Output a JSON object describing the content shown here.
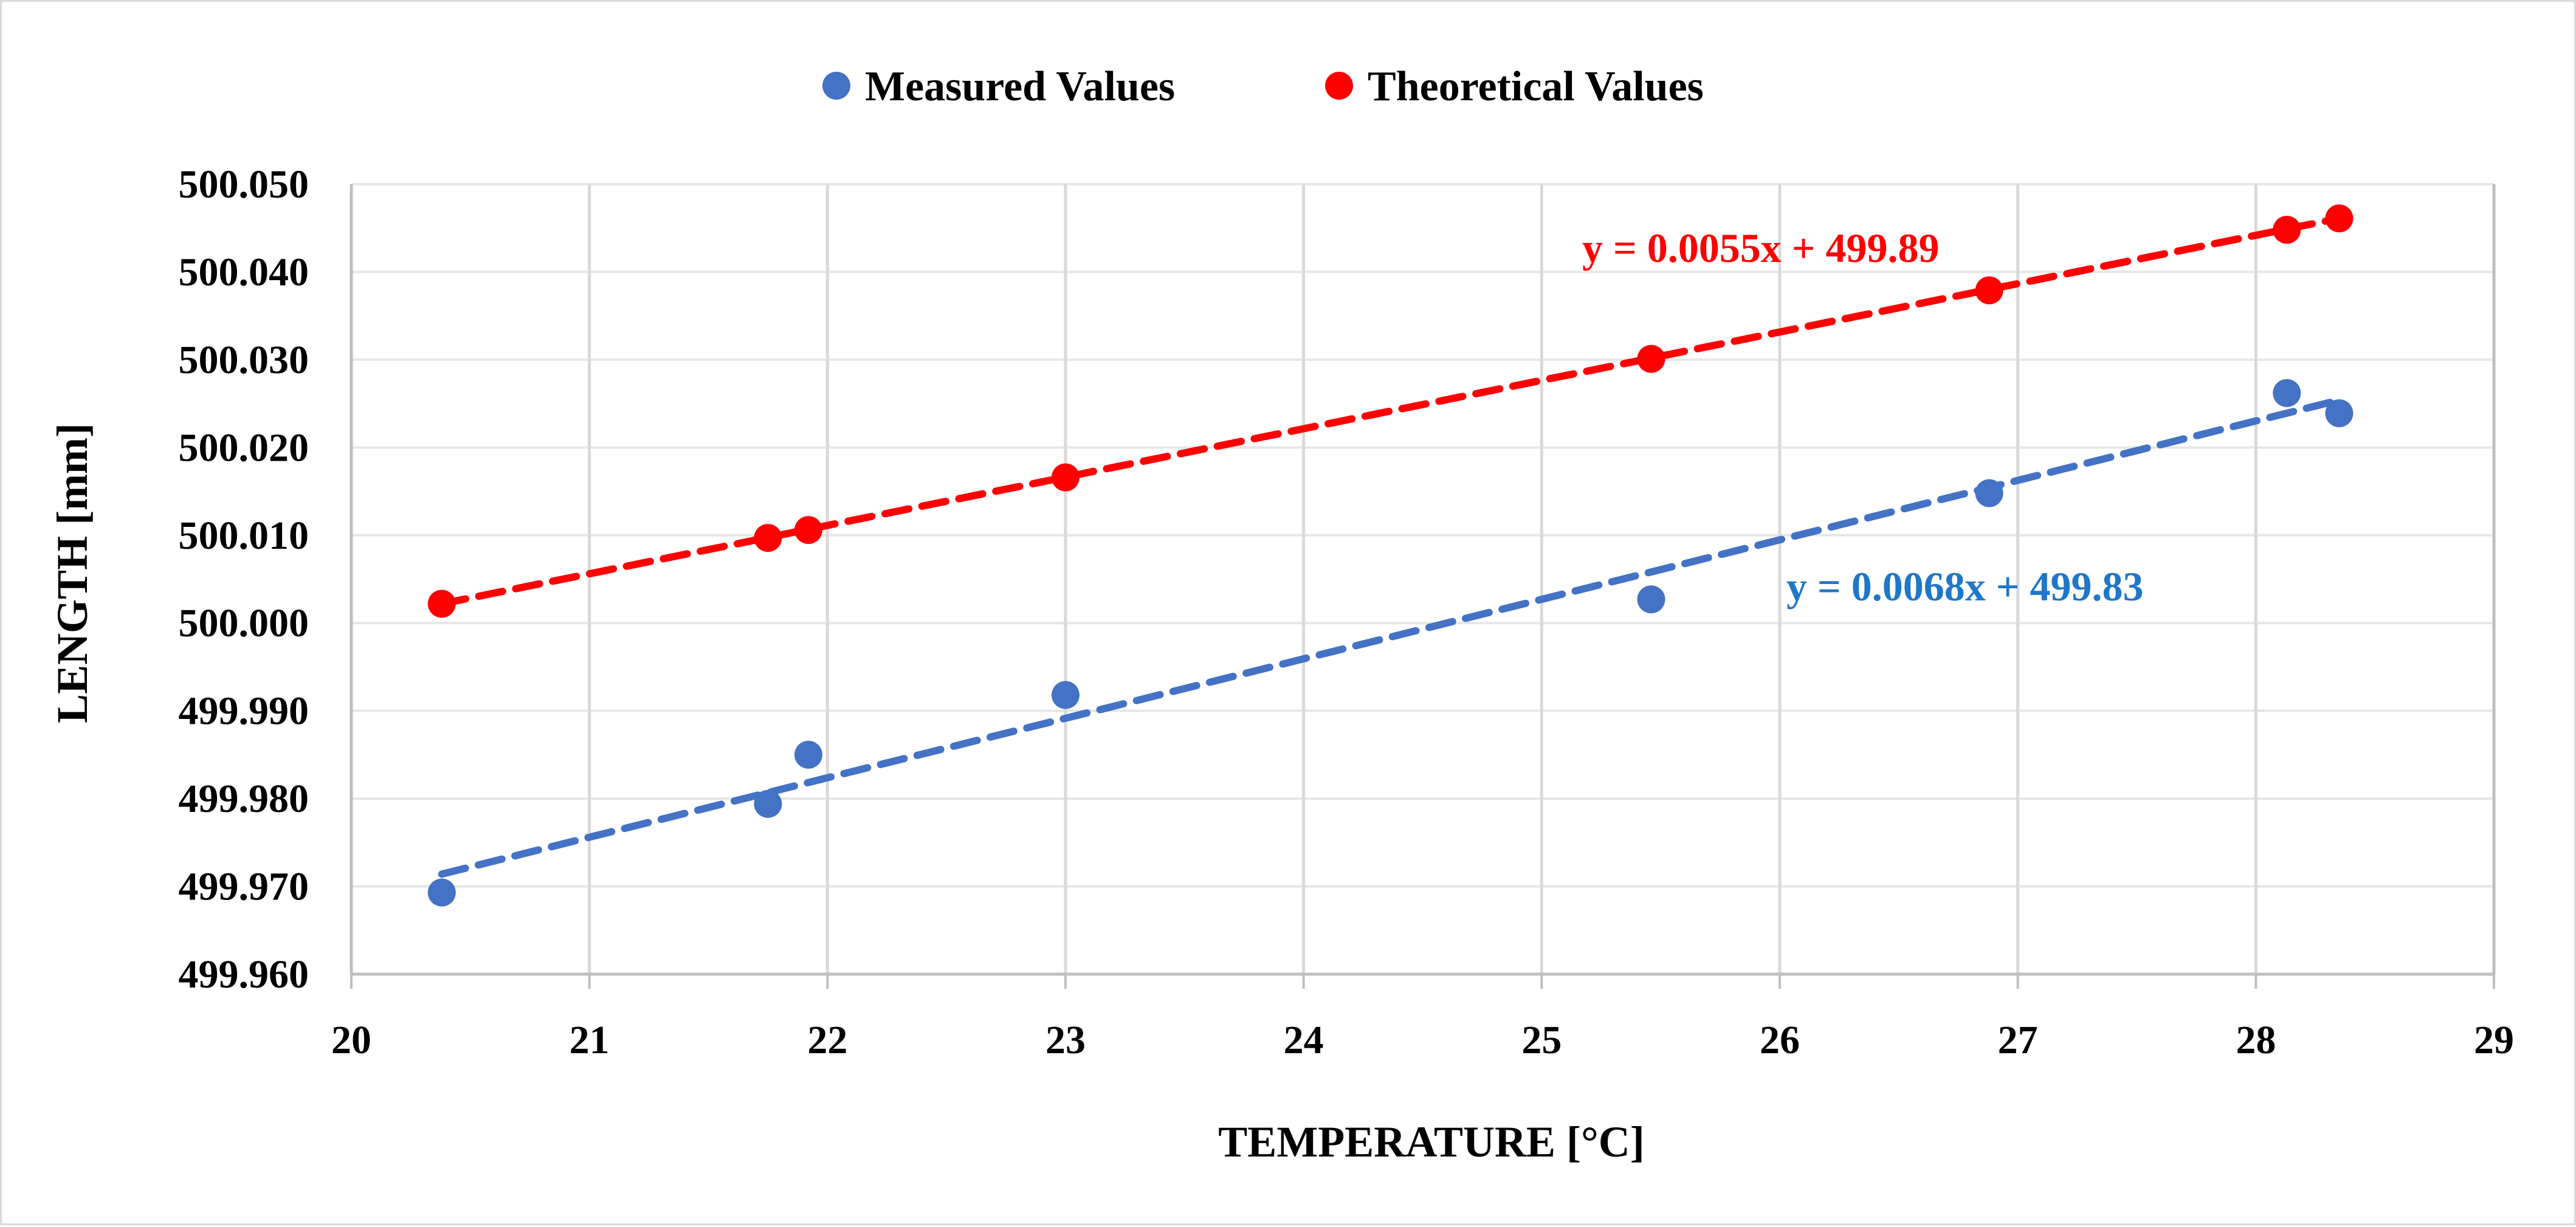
{
  "chart_data": {
    "type": "scatter",
    "xlabel": "TEMPERATURE [°C]",
    "ylabel": "LENGTH [mm]",
    "xlim": [
      20,
      29
    ],
    "ylim": [
      499.96,
      500.05
    ],
    "x_ticks": [
      "20",
      "21",
      "22",
      "23",
      "24",
      "25",
      "26",
      "27",
      "28",
      "29"
    ],
    "y_ticks": [
      "499.960",
      "499.970",
      "499.980",
      "499.990",
      "500.000",
      "500.010",
      "500.020",
      "500.030",
      "500.040",
      "500.050"
    ],
    "grid": "vertical and horizontal",
    "legend_position": "top",
    "series": [
      {
        "name": "Measured Values",
        "color": "#4472c4",
        "x": [
          20.38,
          21.75,
          21.92,
          23.0,
          25.46,
          26.88,
          28.13,
          28.35
        ],
        "y": [
          499.9693,
          499.9794,
          499.985,
          499.9918,
          500.0027,
          500.0148,
          500.0262,
          500.0239
        ],
        "trendline": {
          "style": "dashed",
          "color": "#4472c4",
          "equation": "y = 0.0068x + 499.83",
          "equation_color": "#1f77c8",
          "slope": 0.0068,
          "x_range": [
            20.38,
            28.35
          ],
          "y_range": [
            499.9714,
            500.0254
          ]
        }
      },
      {
        "name": "Theoretical Values",
        "color": "#ff0000",
        "x": [
          20.38,
          21.75,
          21.92,
          23.0,
          25.46,
          26.88,
          28.13,
          28.35
        ],
        "y": [
          500.0022,
          500.0097,
          500.0106,
          500.0166,
          500.0301,
          500.0379,
          500.0448,
          500.0461
        ],
        "trendline": {
          "style": "dashed",
          "color": "#ff0000",
          "equation": "y = 0.0055x + 499.89",
          "equation_color": "#ff0000",
          "slope": 0.0055,
          "x_range": [
            20.38,
            28.35
          ],
          "y_range": [
            500.0022,
            500.0461
          ]
        }
      }
    ]
  }
}
